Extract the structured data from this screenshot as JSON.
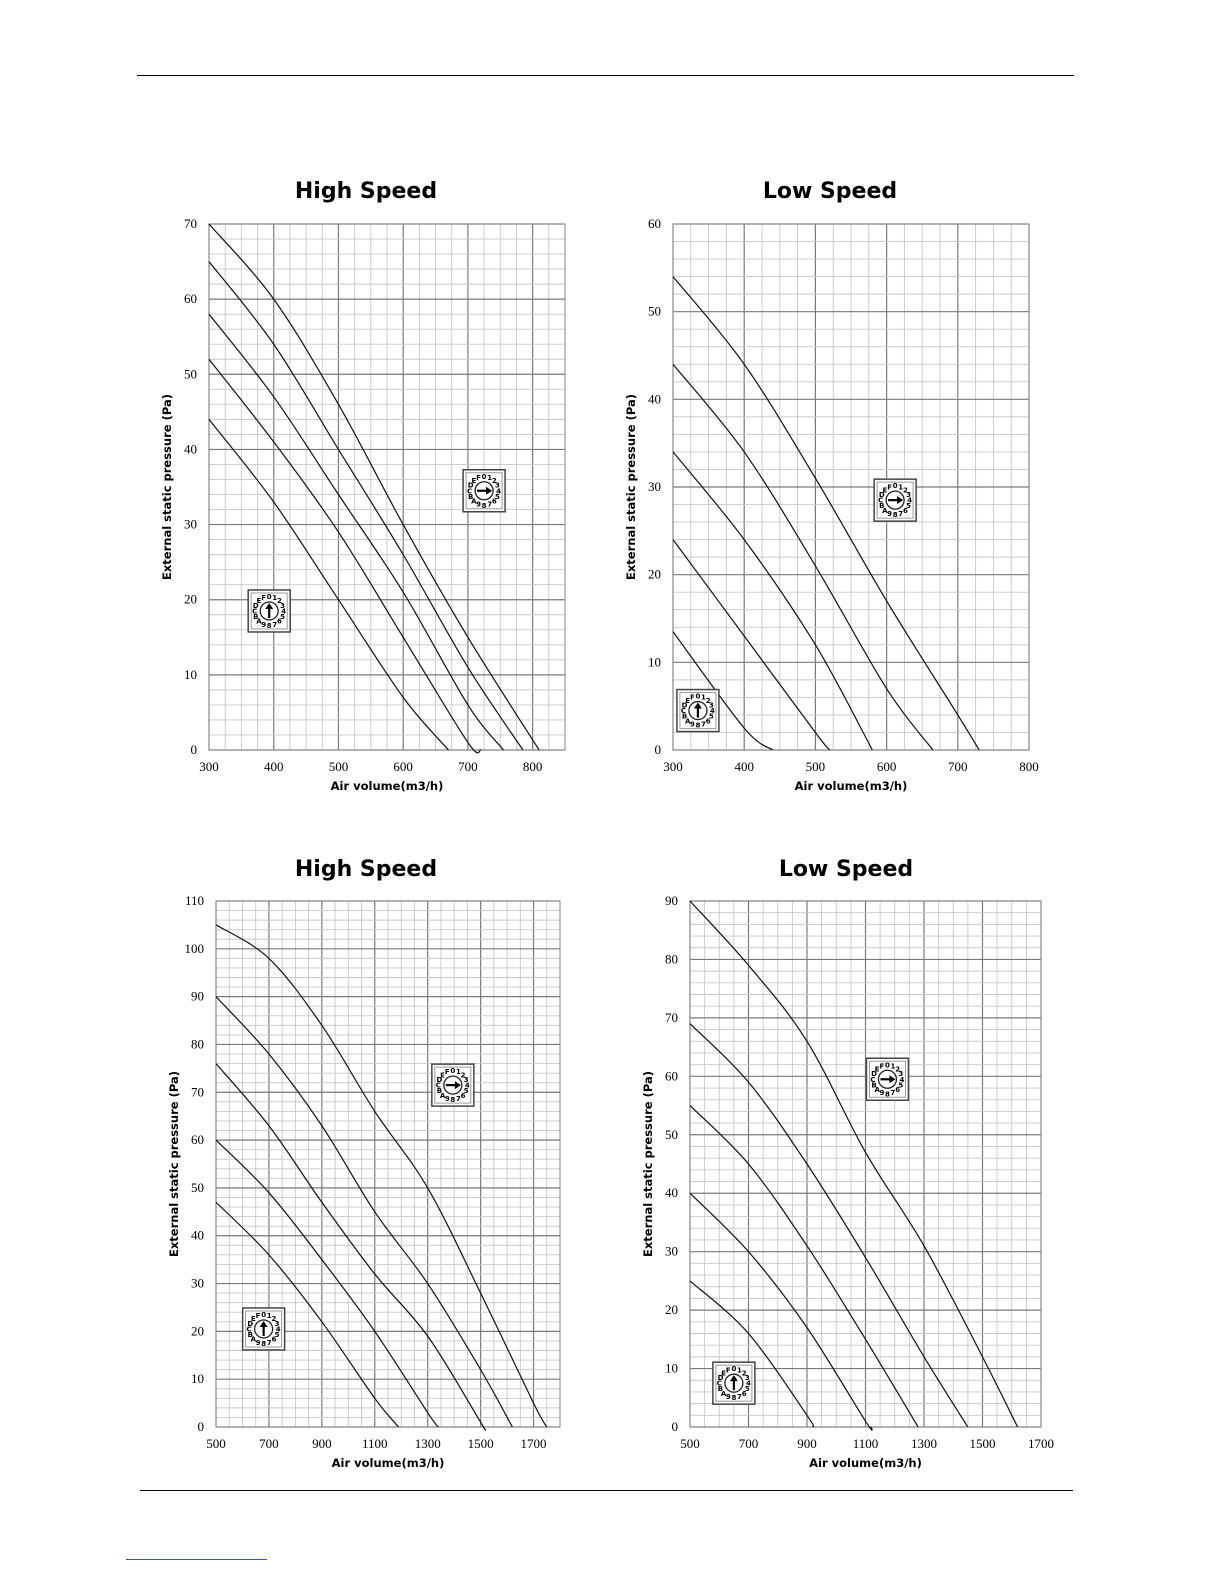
{
  "chart_data": [
    {
      "type": "line",
      "title": "High Speed",
      "xlabel": "Air volume(m3/h)",
      "ylabel": "External static pressure (Pa)",
      "xlim": [
        300,
        850
      ],
      "ylim": [
        0,
        70
      ],
      "x_ticks": [
        300,
        400,
        500,
        600,
        700,
        800
      ],
      "y_ticks": [
        0,
        10,
        20,
        30,
        40,
        50,
        60,
        70
      ],
      "grid": true,
      "series": [
        {
          "points": [
            [
              300,
              44
            ],
            [
              400,
              33
            ],
            [
              500,
              20
            ],
            [
              600,
              7
            ],
            [
              670,
              0
            ]
          ]
        },
        {
          "points": [
            [
              300,
              52
            ],
            [
              400,
              41
            ],
            [
              500,
              29
            ],
            [
              600,
              15
            ],
            [
              700,
              1
            ],
            [
              720,
              0
            ]
          ]
        },
        {
          "points": [
            [
              300,
              58
            ],
            [
              400,
              47
            ],
            [
              500,
              34
            ],
            [
              600,
              21
            ],
            [
              700,
              6
            ],
            [
              755,
              0
            ]
          ]
        },
        {
          "points": [
            [
              300,
              65
            ],
            [
              400,
              54
            ],
            [
              500,
              40
            ],
            [
              600,
              26
            ],
            [
              700,
              11
            ],
            [
              785,
              0
            ]
          ]
        },
        {
          "points": [
            [
              300,
              70
            ],
            [
              400,
              60
            ],
            [
              500,
              46
            ],
            [
              600,
              30
            ],
            [
              700,
              15
            ],
            [
              810,
              0
            ]
          ]
        }
      ],
      "annotations": [
        {
          "label": "dial",
          "direction": "right",
          "x": 725,
          "y": 34.5,
          "text": "ABCDEF0123456789"
        },
        {
          "label": "dial",
          "direction": "up",
          "x": 393,
          "y": 18.5,
          "text": "ABCDEF0123456789"
        }
      ]
    },
    {
      "type": "line",
      "title": "Low Speed",
      "xlabel": "Air volume(m3/h)",
      "ylabel": "External static pressure (Pa)",
      "xlim": [
        300,
        800
      ],
      "ylim": [
        0,
        60
      ],
      "x_ticks": [
        300,
        400,
        500,
        600,
        700,
        800
      ],
      "y_ticks": [
        0,
        10,
        20,
        30,
        40,
        50,
        60
      ],
      "grid": true,
      "series": [
        {
          "points": [
            [
              300,
              13.5
            ],
            [
              400,
              2.5
            ],
            [
              440,
              0
            ]
          ]
        },
        {
          "points": [
            [
              300,
              24
            ],
            [
              400,
              13
            ],
            [
              500,
              2
            ],
            [
              520,
              0
            ]
          ]
        },
        {
          "points": [
            [
              300,
              34
            ],
            [
              400,
              24
            ],
            [
              500,
              12
            ],
            [
              580,
              0
            ]
          ]
        },
        {
          "points": [
            [
              300,
              44
            ],
            [
              400,
              34
            ],
            [
              500,
              21
            ],
            [
              600,
              7
            ],
            [
              665,
              0
            ]
          ]
        },
        {
          "points": [
            [
              300,
              54
            ],
            [
              400,
              44
            ],
            [
              500,
              31
            ],
            [
              600,
              17
            ],
            [
              700,
              4
            ],
            [
              730,
              0
            ]
          ]
        }
      ],
      "annotations": [
        {
          "label": "dial",
          "direction": "right",
          "x": 612,
          "y": 28.5,
          "text": "ABCDEF0123456789"
        },
        {
          "label": "dial",
          "direction": "up",
          "x": 335,
          "y": 4.5,
          "text": "ABCDEF0123456789"
        }
      ]
    },
    {
      "type": "line",
      "title": "High Speed",
      "xlabel": "Air volume(m3/h)",
      "ylabel": "External static pressure (Pa)",
      "xlim": [
        500,
        1800
      ],
      "ylim": [
        0,
        110
      ],
      "x_ticks": [
        500,
        700,
        900,
        1100,
        1300,
        1500,
        1700
      ],
      "y_ticks": [
        0,
        10,
        20,
        30,
        40,
        50,
        60,
        70,
        80,
        90,
        100,
        110
      ],
      "grid": true,
      "series": [
        {
          "points": [
            [
              500,
              47
            ],
            [
              700,
              36
            ],
            [
              900,
              22
            ],
            [
              1100,
              6
            ],
            [
              1190,
              0
            ]
          ]
        },
        {
          "points": [
            [
              500,
              60
            ],
            [
              700,
              49
            ],
            [
              900,
              35
            ],
            [
              1100,
              20
            ],
            [
              1300,
              3
            ],
            [
              1340,
              0
            ]
          ]
        },
        {
          "points": [
            [
              500,
              76
            ],
            [
              700,
              63
            ],
            [
              900,
              47
            ],
            [
              1100,
              32
            ],
            [
              1300,
              19
            ],
            [
              1500,
              1
            ],
            [
              1510,
              0
            ]
          ]
        },
        {
          "points": [
            [
              500,
              90
            ],
            [
              700,
              78
            ],
            [
              900,
              63
            ],
            [
              1100,
              45
            ],
            [
              1300,
              30
            ],
            [
              1500,
              12
            ],
            [
              1620,
              0
            ]
          ]
        },
        {
          "points": [
            [
              500,
              105
            ],
            [
              700,
              98
            ],
            [
              900,
              84
            ],
            [
              1100,
              66
            ],
            [
              1300,
              50
            ],
            [
              1500,
              28
            ],
            [
              1700,
              5
            ],
            [
              1750,
              0
            ]
          ]
        }
      ],
      "annotations": [
        {
          "label": "dial",
          "direction": "right",
          "x": 1395,
          "y": 71.5,
          "text": "ABCDEF0123456789"
        },
        {
          "label": "dial",
          "direction": "up",
          "x": 680,
          "y": 20.5,
          "text": "ABCDEF0123456789"
        }
      ]
    },
    {
      "type": "line",
      "title": "Low Speed",
      "xlabel": "Air volume(m3/h)",
      "ylabel": "External static pressure (Pa)",
      "xlim": [
        500,
        1700
      ],
      "ylim": [
        0,
        90
      ],
      "x_ticks": [
        500,
        700,
        900,
        1100,
        1300,
        1500,
        1700
      ],
      "y_ticks": [
        0,
        10,
        20,
        30,
        40,
        50,
        60,
        70,
        80,
        90
      ],
      "grid": true,
      "series": [
        {
          "points": [
            [
              500,
              25
            ],
            [
              700,
              16
            ],
            [
              900,
              2
            ],
            [
              920,
              0
            ]
          ]
        },
        {
          "points": [
            [
              500,
              40
            ],
            [
              700,
              30
            ],
            [
              900,
              17
            ],
            [
              1100,
              1
            ],
            [
              1120,
              0
            ]
          ]
        },
        {
          "points": [
            [
              500,
              55
            ],
            [
              700,
              45
            ],
            [
              900,
              31
            ],
            [
              1100,
              15
            ],
            [
              1280,
              0
            ]
          ]
        },
        {
          "points": [
            [
              500,
              69
            ],
            [
              700,
              59
            ],
            [
              900,
              45
            ],
            [
              1100,
              29
            ],
            [
              1300,
              12
            ],
            [
              1450,
              0
            ]
          ]
        },
        {
          "points": [
            [
              500,
              90
            ],
            [
              700,
              79
            ],
            [
              900,
              66
            ],
            [
              1100,
              47
            ],
            [
              1300,
              31
            ],
            [
              1500,
              12
            ],
            [
              1620,
              0
            ]
          ]
        }
      ],
      "annotations": [
        {
          "label": "dial",
          "direction": "right",
          "x": 1175,
          "y": 59.5,
          "text": "ABCDEF0123456789"
        },
        {
          "label": "dial",
          "direction": "up",
          "x": 650,
          "y": 7.5,
          "text": "ABCDEF0123456789"
        }
      ]
    }
  ]
}
